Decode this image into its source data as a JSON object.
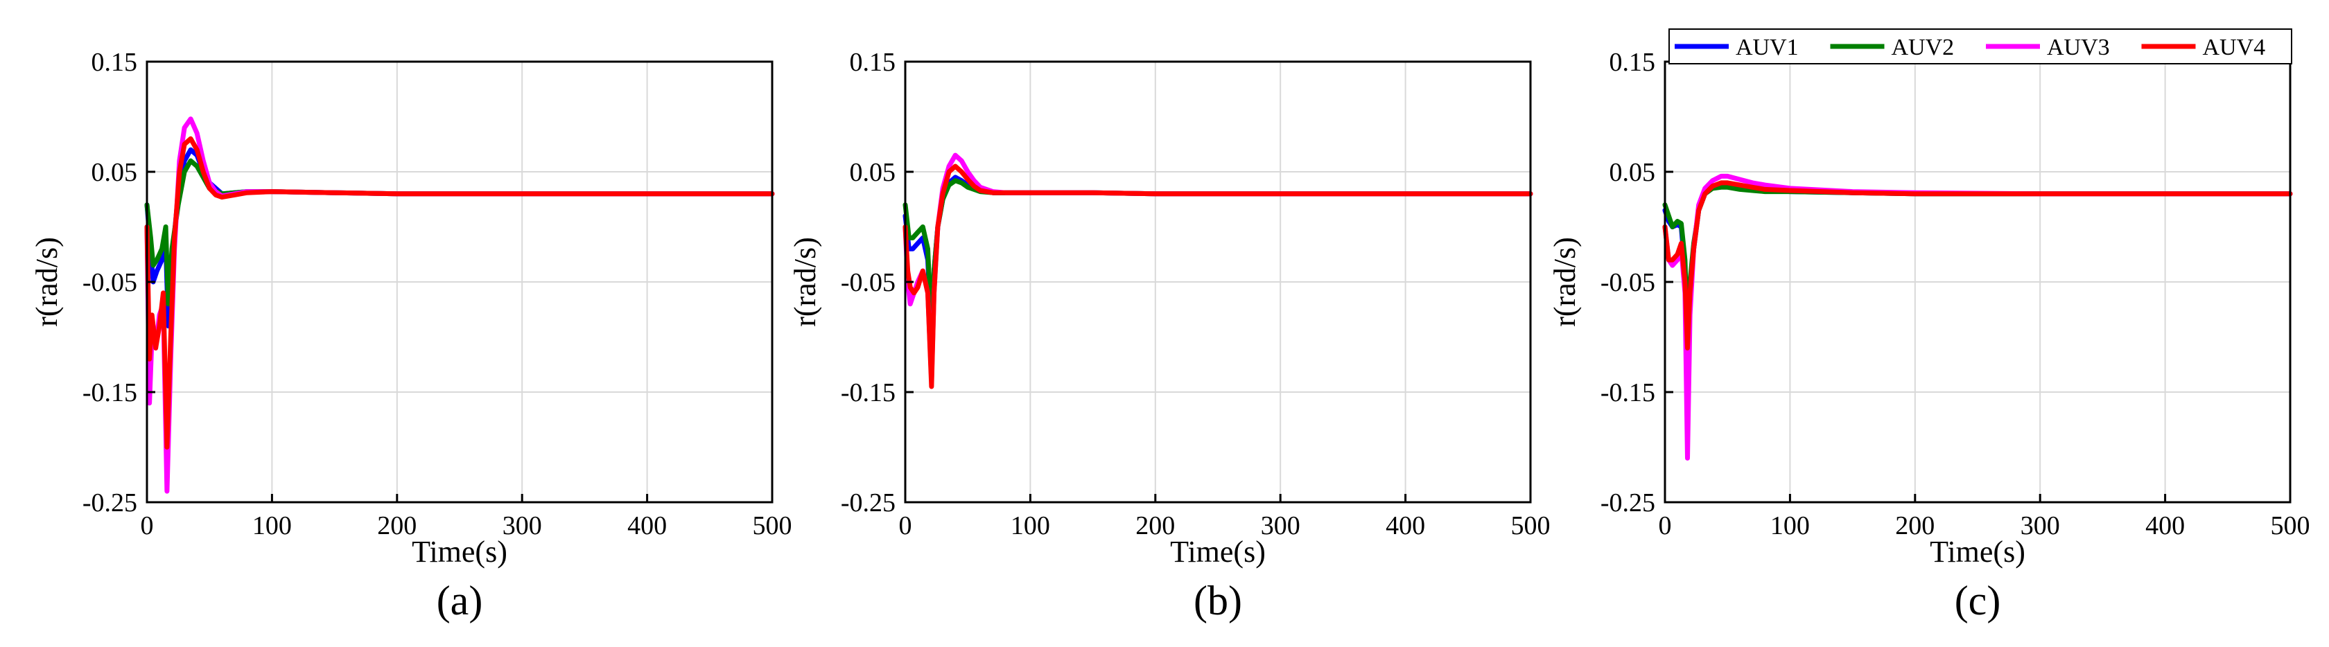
{
  "colors": {
    "AUV1": "#0000ff",
    "AUV2": "#008000",
    "AUV3": "#ff00ff",
    "AUV4": "#ff0000",
    "grid": "#d9d9d9"
  },
  "chart_data": [
    {
      "type": "line",
      "panel_label": "(a)",
      "xlabel": "Time(s)",
      "ylabel": "r(rad/s)",
      "xlim": [
        0,
        500
      ],
      "ylim": [
        -0.25,
        0.15
      ],
      "xticks": [
        "0",
        "100",
        "200",
        "300",
        "400",
        "500"
      ],
      "yticks": [
        "0.15",
        "0.05",
        "-0.05",
        "-0.15",
        "-0.25"
      ],
      "grid": true,
      "legend": null,
      "series": [
        {
          "name": "AUV1",
          "x": [
            0,
            3,
            5,
            8,
            12,
            15,
            17,
            20,
            25,
            30,
            35,
            40,
            45,
            50,
            60,
            70,
            80,
            100,
            150,
            200,
            300,
            400,
            500
          ],
          "y": [
            0.02,
            -0.02,
            -0.05,
            -0.04,
            -0.03,
            -0.015,
            -0.09,
            -0.03,
            0.03,
            0.06,
            0.07,
            0.065,
            0.05,
            0.04,
            0.03,
            0.031,
            0.032,
            0.032,
            0.031,
            0.03,
            0.03,
            0.03,
            0.03
          ]
        },
        {
          "name": "AUV2",
          "x": [
            0,
            3,
            5,
            8,
            12,
            15,
            17,
            20,
            25,
            30,
            35,
            40,
            45,
            50,
            60,
            70,
            80,
            100,
            150,
            200,
            300,
            400,
            500
          ],
          "y": [
            0.02,
            -0.01,
            -0.035,
            -0.03,
            -0.02,
            0.0,
            -0.07,
            -0.02,
            0.02,
            0.05,
            0.06,
            0.055,
            0.045,
            0.035,
            0.03,
            0.031,
            0.032,
            0.032,
            0.031,
            0.03,
            0.03,
            0.03,
            0.03
          ]
        },
        {
          "name": "AUV3",
          "x": [
            0,
            2,
            4,
            7,
            10,
            13,
            16,
            19,
            22,
            26,
            30,
            35,
            40,
            45,
            50,
            55,
            60,
            70,
            80,
            100,
            150,
            200,
            300,
            400,
            500
          ],
          "y": [
            0.0,
            -0.16,
            -0.1,
            -0.11,
            -0.08,
            -0.07,
            -0.24,
            -0.12,
            -0.02,
            0.06,
            0.09,
            0.098,
            0.085,
            0.06,
            0.04,
            0.032,
            0.028,
            0.03,
            0.032,
            0.032,
            0.031,
            0.03,
            0.03,
            0.03,
            0.03
          ]
        },
        {
          "name": "AUV4",
          "x": [
            0,
            2,
            4,
            7,
            10,
            13,
            16,
            19,
            22,
            26,
            30,
            35,
            40,
            45,
            50,
            55,
            60,
            70,
            80,
            100,
            150,
            200,
            300,
            400,
            500
          ],
          "y": [
            0.0,
            -0.12,
            -0.08,
            -0.11,
            -0.09,
            -0.06,
            -0.2,
            -0.1,
            -0.01,
            0.05,
            0.075,
            0.08,
            0.07,
            0.05,
            0.035,
            0.029,
            0.027,
            0.029,
            0.031,
            0.032,
            0.031,
            0.03,
            0.03,
            0.03,
            0.03
          ]
        }
      ]
    },
    {
      "type": "line",
      "panel_label": "(b)",
      "xlabel": "Time(s)",
      "ylabel": "r(rad/s)",
      "xlim": [
        0,
        500
      ],
      "ylim": [
        -0.25,
        0.15
      ],
      "xticks": [
        "0",
        "100",
        "200",
        "300",
        "400",
        "500"
      ],
      "yticks": [
        "0.15",
        "0.05",
        "-0.05",
        "-0.15",
        "-0.25"
      ],
      "grid": true,
      "legend": null,
      "series": [
        {
          "name": "AUV1",
          "x": [
            0,
            3,
            6,
            10,
            14,
            18,
            21,
            23,
            26,
            30,
            35,
            40,
            45,
            50,
            60,
            70,
            80,
            100,
            150,
            200,
            300,
            400,
            500
          ],
          "y": [
            0.01,
            -0.02,
            -0.02,
            -0.015,
            -0.01,
            -0.03,
            -0.1,
            -0.04,
            0.0,
            0.025,
            0.04,
            0.045,
            0.042,
            0.038,
            0.033,
            0.031,
            0.031,
            0.031,
            0.031,
            0.03,
            0.03,
            0.03,
            0.03
          ]
        },
        {
          "name": "AUV2",
          "x": [
            0,
            3,
            6,
            10,
            14,
            18,
            21,
            23,
            26,
            30,
            35,
            40,
            45,
            50,
            60,
            70,
            80,
            100,
            150,
            200,
            300,
            400,
            500
          ],
          "y": [
            0.02,
            -0.01,
            -0.01,
            -0.005,
            0.0,
            -0.02,
            -0.1,
            -0.04,
            0.0,
            0.025,
            0.038,
            0.042,
            0.04,
            0.036,
            0.032,
            0.031,
            0.031,
            0.031,
            0.031,
            0.03,
            0.03,
            0.03,
            0.03
          ]
        },
        {
          "name": "AUV3",
          "x": [
            0,
            2,
            4,
            7,
            10,
            14,
            18,
            21,
            23,
            26,
            30,
            35,
            40,
            45,
            50,
            55,
            60,
            70,
            80,
            100,
            150,
            200,
            300,
            400,
            500
          ],
          "y": [
            0.0,
            -0.05,
            -0.07,
            -0.06,
            -0.05,
            -0.04,
            -0.06,
            -0.14,
            -0.06,
            0.0,
            0.035,
            0.055,
            0.065,
            0.06,
            0.05,
            0.042,
            0.036,
            0.032,
            0.031,
            0.031,
            0.031,
            0.03,
            0.03,
            0.03,
            0.03
          ]
        },
        {
          "name": "AUV4",
          "x": [
            0,
            2,
            4,
            7,
            10,
            14,
            18,
            21,
            23,
            26,
            30,
            35,
            40,
            45,
            50,
            55,
            60,
            70,
            80,
            100,
            150,
            200,
            300,
            400,
            500
          ],
          "y": [
            0.0,
            -0.04,
            -0.055,
            -0.06,
            -0.055,
            -0.04,
            -0.06,
            -0.145,
            -0.06,
            0.0,
            0.03,
            0.05,
            0.055,
            0.05,
            0.043,
            0.037,
            0.033,
            0.031,
            0.031,
            0.031,
            0.031,
            0.03,
            0.03,
            0.03,
            0.03
          ]
        }
      ]
    },
    {
      "type": "line",
      "panel_label": "(c)",
      "xlabel": "Time(s)",
      "ylabel": "r(rad/s)",
      "xlim": [
        0,
        500
      ],
      "ylim": [
        -0.25,
        0.15
      ],
      "xticks": [
        "0",
        "100",
        "200",
        "300",
        "400",
        "500"
      ],
      "yticks": [
        "0.15",
        "0.05",
        "-0.05",
        "-0.15",
        "-0.25"
      ],
      "grid": true,
      "legend": "top",
      "series": [
        {
          "name": "AUV1",
          "x": [
            0,
            3,
            6,
            10,
            13,
            16,
            18,
            20,
            23,
            27,
            32,
            38,
            45,
            50,
            60,
            70,
            80,
            100,
            150,
            200,
            300,
            400,
            500
          ],
          "y": [
            0.015,
            0.005,
            0.0,
            0.002,
            0.0,
            -0.04,
            -0.12,
            -0.06,
            -0.02,
            0.015,
            0.03,
            0.036,
            0.038,
            0.037,
            0.035,
            0.034,
            0.033,
            0.032,
            0.031,
            0.03,
            0.03,
            0.03,
            0.03
          ]
        },
        {
          "name": "AUV2",
          "x": [
            0,
            3,
            6,
            10,
            13,
            16,
            18,
            20,
            23,
            27,
            32,
            38,
            45,
            50,
            60,
            70,
            80,
            100,
            150,
            200,
            300,
            400,
            500
          ],
          "y": [
            0.02,
            0.01,
            0.0,
            0.005,
            0.003,
            -0.03,
            -0.1,
            -0.05,
            -0.015,
            0.015,
            0.03,
            0.035,
            0.036,
            0.036,
            0.034,
            0.033,
            0.032,
            0.032,
            0.031,
            0.03,
            0.03,
            0.03,
            0.03
          ]
        },
        {
          "name": "AUV3",
          "x": [
            0,
            3,
            6,
            10,
            13,
            16,
            18,
            20,
            23,
            27,
            32,
            38,
            45,
            50,
            60,
            70,
            80,
            100,
            150,
            200,
            300,
            400,
            500
          ],
          "y": [
            0.0,
            -0.03,
            -0.035,
            -0.03,
            -0.02,
            -0.06,
            -0.21,
            -0.08,
            -0.02,
            0.02,
            0.035,
            0.042,
            0.046,
            0.046,
            0.043,
            0.04,
            0.038,
            0.035,
            0.032,
            0.031,
            0.03,
            0.03,
            0.03
          ]
        },
        {
          "name": "AUV4",
          "x": [
            0,
            3,
            6,
            10,
            13,
            16,
            18,
            20,
            23,
            27,
            32,
            38,
            45,
            50,
            60,
            70,
            80,
            100,
            150,
            200,
            300,
            400,
            500
          ],
          "y": [
            0.0,
            -0.03,
            -0.03,
            -0.025,
            -0.015,
            -0.05,
            -0.11,
            -0.06,
            -0.02,
            0.015,
            0.03,
            0.037,
            0.04,
            0.04,
            0.038,
            0.036,
            0.034,
            0.033,
            0.031,
            0.03,
            0.03,
            0.03,
            0.03
          ]
        }
      ]
    }
  ]
}
